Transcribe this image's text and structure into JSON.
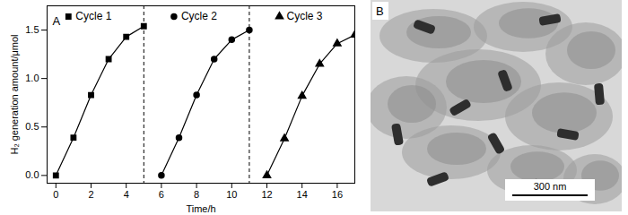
{
  "chart_data": {
    "type": "line",
    "panel_label": "A",
    "x_label": "Time/h",
    "y_label": "H₂ generation amount/μmol",
    "xlim": [
      -0.5,
      17
    ],
    "xticks": [
      0,
      2,
      4,
      6,
      8,
      10,
      12,
      14,
      16
    ],
    "ylim": [
      -0.08,
      1.75
    ],
    "yticks": [
      {
        "value": 0,
        "label": "0.0"
      },
      {
        "value": 0.5,
        "label": "0.5"
      },
      {
        "value": 1,
        "label": "1.0"
      },
      {
        "value": 1.5,
        "label": "1.5"
      }
    ],
    "dividers": [
      5,
      11
    ],
    "series": [
      {
        "name": "Cycle 1",
        "color": "#000000",
        "marker": "square",
        "x": [
          0,
          1,
          2,
          3,
          4,
          5
        ],
        "values": [
          0,
          0.39,
          0.83,
          1.2,
          1.43,
          1.54
        ]
      },
      {
        "name": "Cycle 2",
        "color": "#000000",
        "marker": "circle",
        "x": [
          6,
          7,
          8,
          9,
          10,
          11
        ],
        "values": [
          0,
          0.39,
          0.83,
          1.2,
          1.4,
          1.5
        ]
      },
      {
        "name": "Cycle 3",
        "color": "#000000",
        "marker": "triangle",
        "x": [
          12,
          13,
          14,
          15,
          16,
          17
        ],
        "values": [
          0,
          0.38,
          0.82,
          1.15,
          1.36,
          1.45
        ]
      }
    ]
  },
  "image_panel": {
    "panel_label": "B",
    "scale_bar": "300 nm"
  }
}
